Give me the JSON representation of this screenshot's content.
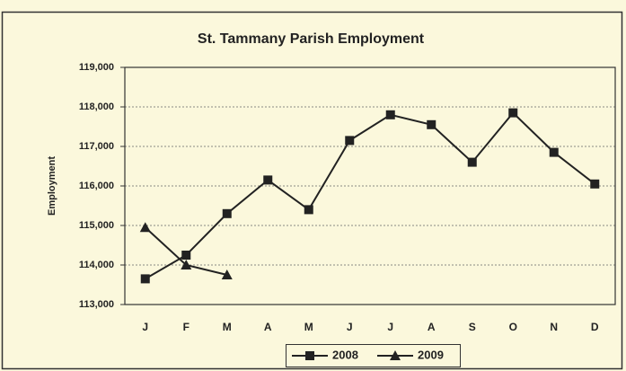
{
  "chart_data": {
    "type": "line",
    "title": "St. Tammany Parish Employment",
    "y_label": "Employment",
    "categories": [
      "J",
      "F",
      "M",
      "A",
      "M",
      "J",
      "J",
      "A",
      "S",
      "O",
      "N",
      "D"
    ],
    "series": [
      {
        "name": "2008",
        "color": "#222222",
        "marker": "square",
        "values": [
          113650,
          114250,
          115300,
          116150,
          115400,
          117150,
          117800,
          117550,
          116600,
          117850,
          116850,
          116050
        ]
      },
      {
        "name": "2009",
        "color": "#222222",
        "marker": "triangle",
        "values": [
          114950,
          114000,
          113750,
          null,
          null,
          null,
          null,
          null,
          null,
          null,
          null,
          null
        ]
      }
    ],
    "ylim": [
      113000,
      119000
    ],
    "yticks": [
      {
        "value": 113000,
        "label": "113,000"
      },
      {
        "value": 114000,
        "label": "114,000"
      },
      {
        "value": 115000,
        "label": "115,000"
      },
      {
        "value": 116000,
        "label": "116,000"
      },
      {
        "value": 117000,
        "label": "117,000"
      },
      {
        "value": 118000,
        "label": "118,000"
      },
      {
        "value": 119000,
        "label": "119,000"
      }
    ],
    "grid": true,
    "legend": "bottom"
  }
}
